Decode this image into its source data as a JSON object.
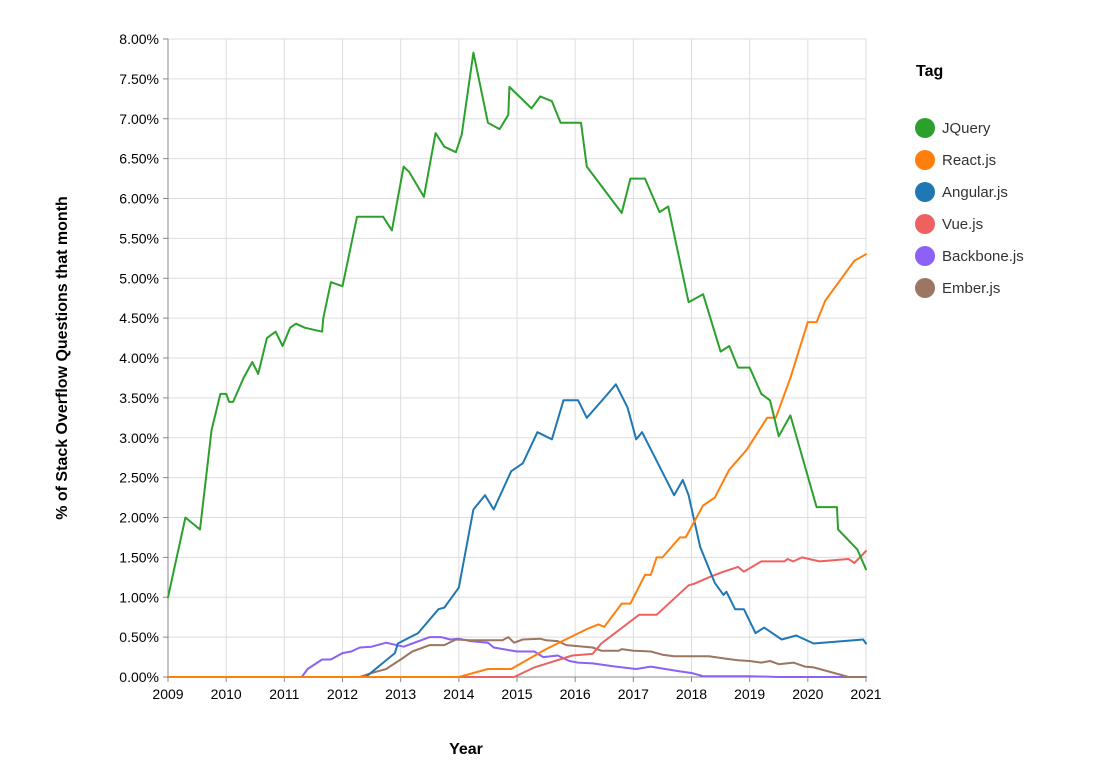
{
  "chart_data": {
    "type": "line",
    "xlabel": "Year",
    "ylabel": "% of Stack Overflow Questions that month",
    "xlim": [
      2009,
      2021
    ],
    "ylim": [
      0,
      8
    ],
    "x_ticks": [
      "2009",
      "2010",
      "2011",
      "2012",
      "2013",
      "2014",
      "2015",
      "2016",
      "2017",
      "2018",
      "2019",
      "2020",
      "2021"
    ],
    "y_ticks": [
      "0.00%",
      "0.50%",
      "1.00%",
      "1.50%",
      "2.00%",
      "2.50%",
      "3.00%",
      "3.50%",
      "4.00%",
      "4.50%",
      "5.00%",
      "5.50%",
      "6.00%",
      "6.50%",
      "7.00%",
      "7.50%",
      "8.00%"
    ],
    "grid": true,
    "legend": {
      "title": "Tag",
      "position": "right"
    },
    "series": [
      {
        "name": "JQuery",
        "color": "#2ca02c",
        "points": [
          [
            2009.0,
            1.0
          ],
          [
            2009.3,
            2.0
          ],
          [
            2009.55,
            1.85
          ],
          [
            2009.75,
            3.1
          ],
          [
            2009.9,
            3.55
          ],
          [
            2010.0,
            3.55
          ],
          [
            2010.05,
            3.45
          ],
          [
            2010.12,
            3.45
          ],
          [
            2010.3,
            3.75
          ],
          [
            2010.45,
            3.95
          ],
          [
            2010.55,
            3.8
          ],
          [
            2010.7,
            4.25
          ],
          [
            2010.85,
            4.33
          ],
          [
            2010.97,
            4.15
          ],
          [
            2011.1,
            4.38
          ],
          [
            2011.2,
            4.43
          ],
          [
            2011.35,
            4.38
          ],
          [
            2011.65,
            4.33
          ],
          [
            2011.67,
            4.5
          ],
          [
            2011.8,
            4.95
          ],
          [
            2012.0,
            4.9
          ],
          [
            2012.25,
            5.77
          ],
          [
            2012.7,
            5.77
          ],
          [
            2012.85,
            5.6
          ],
          [
            2013.05,
            6.4
          ],
          [
            2013.15,
            6.33
          ],
          [
            2013.4,
            6.02
          ],
          [
            2013.6,
            6.82
          ],
          [
            2013.75,
            6.65
          ],
          [
            2013.95,
            6.58
          ],
          [
            2014.05,
            6.8
          ],
          [
            2014.25,
            7.83
          ],
          [
            2014.5,
            6.95
          ],
          [
            2014.7,
            6.87
          ],
          [
            2014.85,
            7.05
          ],
          [
            2014.87,
            7.4
          ],
          [
            2015.25,
            7.13
          ],
          [
            2015.4,
            7.28
          ],
          [
            2015.6,
            7.22
          ],
          [
            2015.75,
            6.95
          ],
          [
            2016.1,
            6.95
          ],
          [
            2016.2,
            6.4
          ],
          [
            2016.8,
            5.82
          ],
          [
            2016.95,
            6.25
          ],
          [
            2017.2,
            6.25
          ],
          [
            2017.45,
            5.83
          ],
          [
            2017.6,
            5.9
          ],
          [
            2017.95,
            4.7
          ],
          [
            2018.2,
            4.8
          ],
          [
            2018.5,
            4.08
          ],
          [
            2018.65,
            4.15
          ],
          [
            2018.8,
            3.88
          ],
          [
            2019.0,
            3.88
          ],
          [
            2019.2,
            3.55
          ],
          [
            2019.35,
            3.47
          ],
          [
            2019.5,
            3.02
          ],
          [
            2019.7,
            3.28
          ],
          [
            2020.15,
            2.13
          ],
          [
            2020.5,
            2.13
          ],
          [
            2020.52,
            1.85
          ],
          [
            2020.85,
            1.6
          ],
          [
            2021.0,
            1.35
          ]
        ]
      },
      {
        "name": "React.js",
        "color": "#ff7f0e",
        "points": [
          [
            2009.0,
            0
          ],
          [
            2014.0,
            0
          ],
          [
            2014.5,
            0.1
          ],
          [
            2014.9,
            0.1
          ],
          [
            2015.5,
            0.35
          ],
          [
            2016.2,
            0.6
          ],
          [
            2016.4,
            0.66
          ],
          [
            2016.5,
            0.63
          ],
          [
            2016.8,
            0.92
          ],
          [
            2016.95,
            0.92
          ],
          [
            2017.2,
            1.28
          ],
          [
            2017.3,
            1.28
          ],
          [
            2017.4,
            1.5
          ],
          [
            2017.5,
            1.5
          ],
          [
            2017.8,
            1.75
          ],
          [
            2017.9,
            1.75
          ],
          [
            2018.2,
            2.15
          ],
          [
            2018.4,
            2.25
          ],
          [
            2018.65,
            2.6
          ],
          [
            2018.95,
            2.85
          ],
          [
            2019.3,
            3.25
          ],
          [
            2019.45,
            3.25
          ],
          [
            2019.7,
            3.75
          ],
          [
            2020.0,
            4.45
          ],
          [
            2020.15,
            4.45
          ],
          [
            2020.3,
            4.72
          ],
          [
            2020.8,
            5.22
          ],
          [
            2021.0,
            5.3
          ]
        ]
      },
      {
        "name": "Angular.js",
        "color": "#1f77b4",
        "points": [
          [
            2009.0,
            0
          ],
          [
            2012.4,
            0
          ],
          [
            2012.9,
            0.3
          ],
          [
            2012.95,
            0.42
          ],
          [
            2013.3,
            0.55
          ],
          [
            2013.65,
            0.85
          ],
          [
            2013.75,
            0.87
          ],
          [
            2014.0,
            1.12
          ],
          [
            2014.25,
            2.1
          ],
          [
            2014.45,
            2.28
          ],
          [
            2014.6,
            2.1
          ],
          [
            2014.9,
            2.58
          ],
          [
            2015.1,
            2.68
          ],
          [
            2015.35,
            3.07
          ],
          [
            2015.6,
            2.98
          ],
          [
            2015.8,
            3.47
          ],
          [
            2016.05,
            3.47
          ],
          [
            2016.2,
            3.25
          ],
          [
            2016.5,
            3.5
          ],
          [
            2016.7,
            3.67
          ],
          [
            2016.9,
            3.38
          ],
          [
            2017.05,
            2.98
          ],
          [
            2017.15,
            3.07
          ],
          [
            2017.7,
            2.28
          ],
          [
            2017.85,
            2.47
          ],
          [
            2017.95,
            2.28
          ],
          [
            2018.15,
            1.63
          ],
          [
            2018.4,
            1.18
          ],
          [
            2018.55,
            1.03
          ],
          [
            2018.6,
            1.07
          ],
          [
            2018.75,
            0.85
          ],
          [
            2018.9,
            0.85
          ],
          [
            2019.1,
            0.55
          ],
          [
            2019.25,
            0.62
          ],
          [
            2019.55,
            0.47
          ],
          [
            2019.8,
            0.52
          ],
          [
            2020.1,
            0.42
          ],
          [
            2020.95,
            0.47
          ],
          [
            2021.0,
            0.42
          ]
        ]
      },
      {
        "name": "Vue.js",
        "color": "#ef6060",
        "points": [
          [
            2009.0,
            0
          ],
          [
            2014.95,
            0
          ],
          [
            2015.3,
            0.12
          ],
          [
            2015.95,
            0.27
          ],
          [
            2016.3,
            0.29
          ],
          [
            2016.45,
            0.42
          ],
          [
            2017.1,
            0.78
          ],
          [
            2017.4,
            0.78
          ],
          [
            2017.95,
            1.15
          ],
          [
            2018.05,
            1.17
          ],
          [
            2018.3,
            1.25
          ],
          [
            2018.55,
            1.32
          ],
          [
            2018.8,
            1.38
          ],
          [
            2018.9,
            1.32
          ],
          [
            2019.2,
            1.45
          ],
          [
            2019.6,
            1.45
          ],
          [
            2019.65,
            1.48
          ],
          [
            2019.75,
            1.45
          ],
          [
            2019.9,
            1.5
          ],
          [
            2020.2,
            1.45
          ],
          [
            2020.7,
            1.48
          ],
          [
            2020.8,
            1.43
          ],
          [
            2021.0,
            1.58
          ]
        ]
      },
      {
        "name": "Backbone.js",
        "color": "#8c61f5",
        "points": [
          [
            2009.0,
            0
          ],
          [
            2011.3,
            0
          ],
          [
            2011.4,
            0.1
          ],
          [
            2011.65,
            0.22
          ],
          [
            2011.8,
            0.22
          ],
          [
            2012.0,
            0.3
          ],
          [
            2012.15,
            0.32
          ],
          [
            2012.3,
            0.37
          ],
          [
            2012.5,
            0.38
          ],
          [
            2012.75,
            0.43
          ],
          [
            2013.05,
            0.38
          ],
          [
            2013.2,
            0.42
          ],
          [
            2013.5,
            0.5
          ],
          [
            2013.7,
            0.5
          ],
          [
            2013.85,
            0.47
          ],
          [
            2014.0,
            0.48
          ],
          [
            2014.2,
            0.45
          ],
          [
            2014.5,
            0.43
          ],
          [
            2014.6,
            0.37
          ],
          [
            2015.0,
            0.32
          ],
          [
            2015.3,
            0.32
          ],
          [
            2015.45,
            0.25
          ],
          [
            2015.7,
            0.27
          ],
          [
            2015.9,
            0.2
          ],
          [
            2016.05,
            0.18
          ],
          [
            2016.3,
            0.17
          ],
          [
            2016.7,
            0.13
          ],
          [
            2017.05,
            0.1
          ],
          [
            2017.3,
            0.13
          ],
          [
            2017.55,
            0.1
          ],
          [
            2017.8,
            0.07
          ],
          [
            2018.0,
            0.05
          ],
          [
            2018.2,
            0.01
          ],
          [
            2019.0,
            0.01
          ],
          [
            2019.5,
            0
          ],
          [
            2021.0,
            0
          ]
        ]
      },
      {
        "name": "Ember.js",
        "color": "#9c7563",
        "points": [
          [
            2009.0,
            0
          ],
          [
            2012.3,
            0
          ],
          [
            2012.5,
            0.05
          ],
          [
            2012.75,
            0.1
          ],
          [
            2013.0,
            0.22
          ],
          [
            2013.2,
            0.32
          ],
          [
            2013.5,
            0.4
          ],
          [
            2013.75,
            0.4
          ],
          [
            2013.95,
            0.47
          ],
          [
            2014.2,
            0.46
          ],
          [
            2014.5,
            0.46
          ],
          [
            2014.75,
            0.46
          ],
          [
            2014.85,
            0.5
          ],
          [
            2014.95,
            0.43
          ],
          [
            2015.1,
            0.47
          ],
          [
            2015.4,
            0.48
          ],
          [
            2015.5,
            0.46
          ],
          [
            2015.7,
            0.45
          ],
          [
            2015.85,
            0.4
          ],
          [
            2016.3,
            0.37
          ],
          [
            2016.45,
            0.33
          ],
          [
            2016.75,
            0.33
          ],
          [
            2016.8,
            0.35
          ],
          [
            2017.0,
            0.33
          ],
          [
            2017.3,
            0.32
          ],
          [
            2017.5,
            0.28
          ],
          [
            2017.7,
            0.26
          ],
          [
            2018.3,
            0.26
          ],
          [
            2018.6,
            0.23
          ],
          [
            2018.8,
            0.21
          ],
          [
            2019.0,
            0.2
          ],
          [
            2019.2,
            0.18
          ],
          [
            2019.35,
            0.2
          ],
          [
            2019.5,
            0.16
          ],
          [
            2019.75,
            0.18
          ],
          [
            2019.95,
            0.13
          ],
          [
            2020.1,
            0.12
          ],
          [
            2020.35,
            0.07
          ],
          [
            2020.6,
            0.02
          ],
          [
            2020.7,
            0
          ],
          [
            2021.0,
            0
          ]
        ]
      }
    ]
  }
}
